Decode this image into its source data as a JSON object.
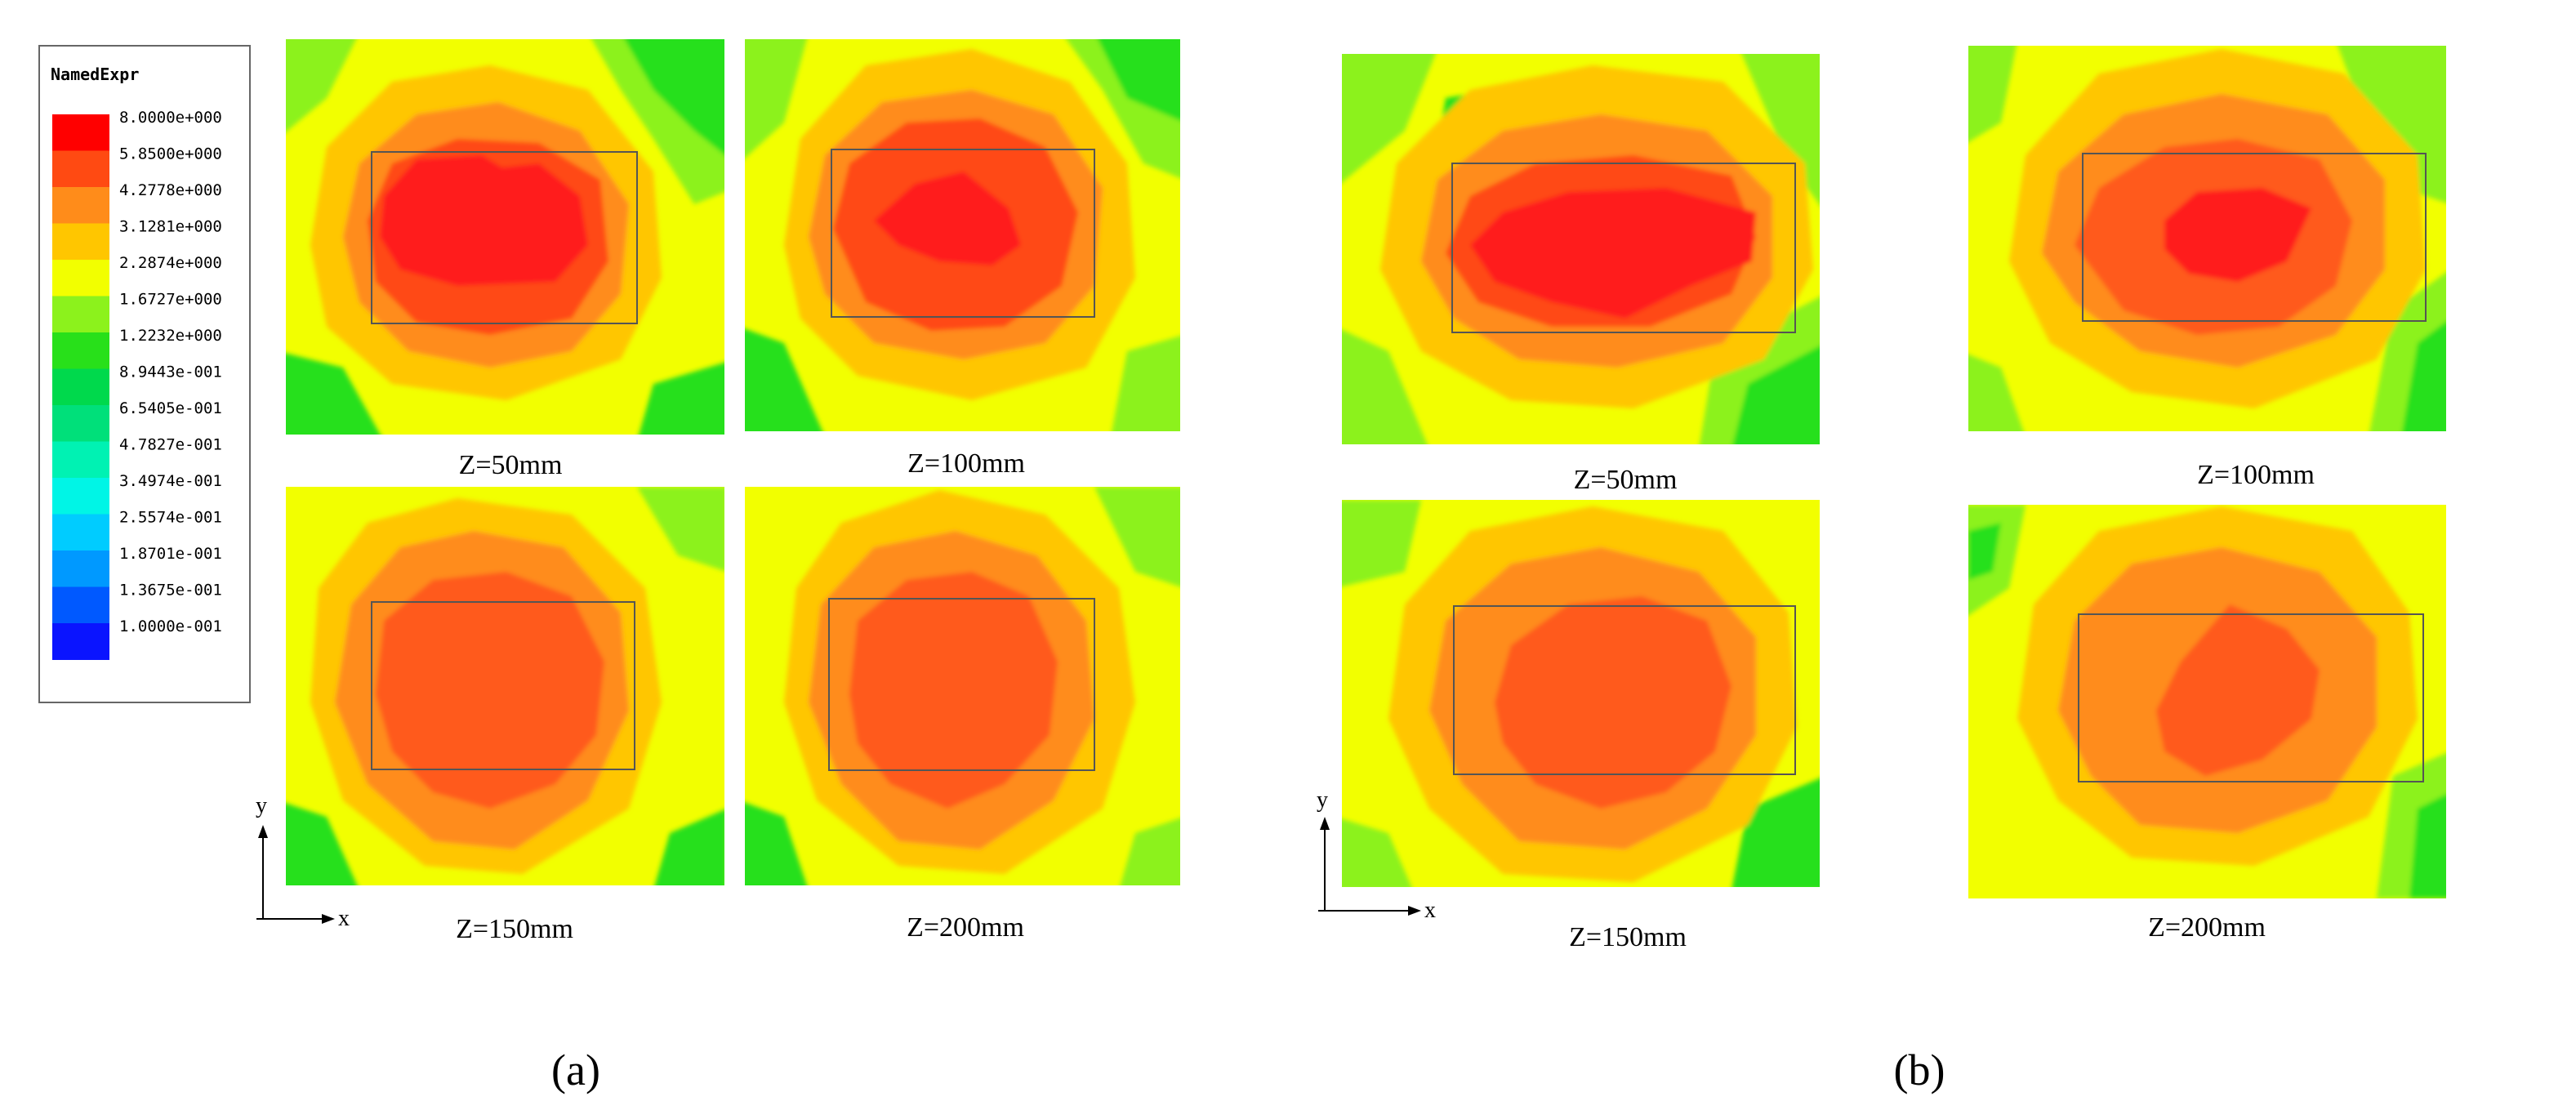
{
  "legend": {
    "title": "NamedExpr",
    "entries": [
      {
        "label": "8.0000e+000",
        "color": "#ff0000"
      },
      {
        "label": "5.8500e+000",
        "color": "#ff4a12"
      },
      {
        "label": "4.2778e+000",
        "color": "#ff8c1a"
      },
      {
        "label": "3.1281e+000",
        "color": "#ffc600"
      },
      {
        "label": "2.2874e+000",
        "color": "#f2ff00"
      },
      {
        "label": "1.6727e+000",
        "color": "#8cf21c"
      },
      {
        "label": "1.2232e+000",
        "color": "#28e01a"
      },
      {
        "label": "8.9443e-001",
        "color": "#00d94c"
      },
      {
        "label": "6.5405e-001",
        "color": "#00e07a"
      },
      {
        "label": "4.7827e-001",
        "color": "#00f2b3"
      },
      {
        "label": "3.4974e-001",
        "color": "#00f5e6"
      },
      {
        "label": "2.5574e-001",
        "color": "#00ccff"
      },
      {
        "label": "1.8701e-001",
        "color": "#0099ff"
      },
      {
        "label": "1.3675e-001",
        "color": "#0059ff"
      },
      {
        "label": "1.0000e-001",
        "color": "#0a14ff"
      }
    ]
  },
  "axes": {
    "y": "y",
    "x": "x"
  },
  "subfigures": [
    {
      "label": "(a)",
      "panels": [
        {
          "caption": "Z=50mm"
        },
        {
          "caption": "Z=100mm"
        },
        {
          "caption": "Z=150mm"
        },
        {
          "caption": "Z=200mm"
        }
      ]
    },
    {
      "label": "(b)",
      "panels": [
        {
          "caption": "Z=50mm"
        },
        {
          "caption": "Z=100mm"
        },
        {
          "caption": "Z=150mm"
        },
        {
          "caption": "Z=200mm"
        }
      ]
    }
  ]
}
